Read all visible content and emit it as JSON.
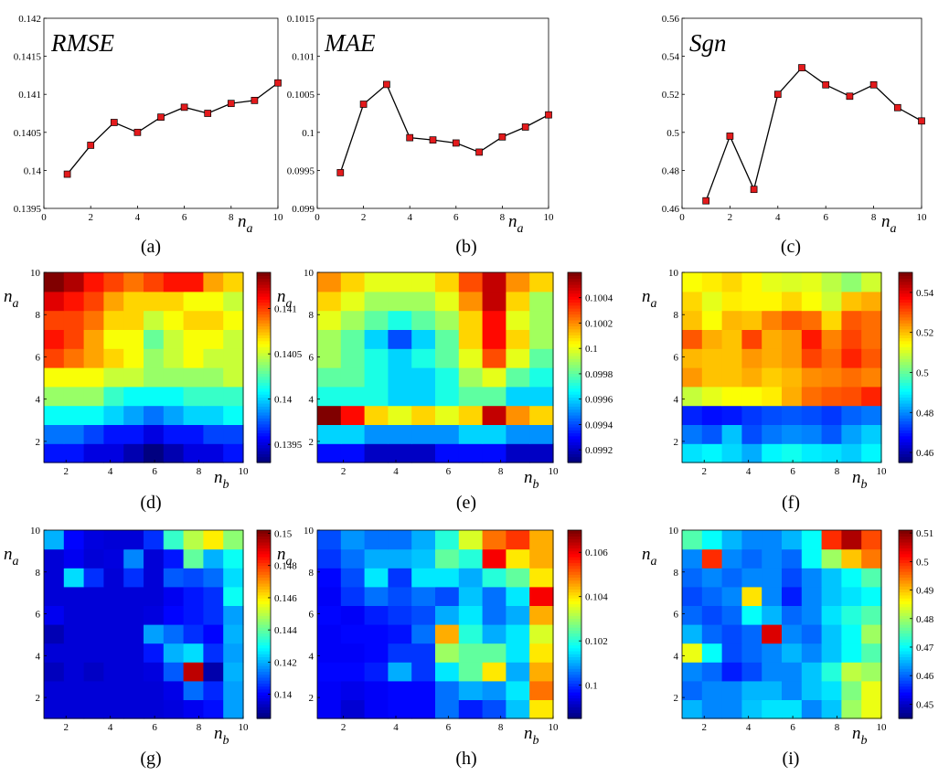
{
  "figure": {
    "panel_captions": [
      "(a)",
      "(b)",
      "(c)",
      "(d)",
      "(e)",
      "(f)",
      "(g)",
      "(h)",
      "(i)"
    ],
    "xlabel_main": "n",
    "xlabel_sub_a": "a",
    "xlabel_sub_b": "b",
    "ylabel_main": "n",
    "ylabel_sub": "a",
    "colors": {
      "line": "#000000",
      "marker_fill": "#e31a1c",
      "marker_edge": "#000000",
      "jet_low": "#00008f",
      "jet_high": "#800000"
    }
  },
  "chart_data": [
    {
      "panel": "a",
      "type": "line",
      "title": "RMSE",
      "x": [
        1,
        2,
        3,
        4,
        5,
        6,
        7,
        8,
        9,
        10
      ],
      "y": [
        0.13995,
        0.14033,
        0.14063,
        0.1405,
        0.1407,
        0.14083,
        0.14075,
        0.14088,
        0.14092,
        0.14115
      ],
      "xlim": [
        0,
        10
      ],
      "ylim": [
        0.1395,
        0.142
      ],
      "xticks": [
        "0",
        "2",
        "4",
        "6",
        "8",
        "10"
      ],
      "yticks": [
        "0.1395",
        "0.14",
        "0.1405",
        "0.141",
        "0.1415",
        "0.142"
      ]
    },
    {
      "panel": "b",
      "type": "line",
      "title": "MAE",
      "x": [
        1,
        2,
        3,
        4,
        5,
        6,
        7,
        8,
        9,
        10
      ],
      "y": [
        0.09947,
        0.10037,
        0.10063,
        0.09993,
        0.0999,
        0.09986,
        0.09974,
        0.09994,
        0.10007,
        0.10023
      ],
      "xlim": [
        0,
        10
      ],
      "ylim": [
        0.099,
        0.1015
      ],
      "xticks": [
        "0",
        "2",
        "4",
        "6",
        "8",
        "10"
      ],
      "yticks": [
        "0.099",
        "0.0995",
        "0.1",
        "0.1005",
        "0.101",
        "0.1015"
      ]
    },
    {
      "panel": "c",
      "type": "line",
      "title": "Sgn",
      "x": [
        1,
        2,
        3,
        4,
        5,
        6,
        7,
        8,
        9,
        10
      ],
      "y": [
        0.464,
        0.498,
        0.47,
        0.52,
        0.534,
        0.525,
        0.519,
        0.525,
        0.513,
        0.506
      ],
      "xlim": [
        0,
        10
      ],
      "ylim": [
        0.46,
        0.56
      ],
      "xticks": [
        "0",
        "2",
        "4",
        "6",
        "8",
        "10"
      ],
      "yticks": [
        "0.46",
        "0.48",
        "0.5",
        "0.52",
        "0.54",
        "0.56"
      ]
    },
    {
      "panel": "d",
      "type": "heatmap",
      "xticks": [
        "2",
        "4",
        "6",
        "8",
        "10"
      ],
      "yticks": [
        "2",
        "4",
        "6",
        "8",
        "10"
      ],
      "clim": [
        0.1393,
        0.1414
      ],
      "colorbar_ticks": [
        "0.1395",
        "0.14",
        "0.1405",
        "0.141"
      ],
      "colorbar_values": [
        0.1395,
        0.14,
        0.1405,
        0.141
      ],
      "z": [
        [
          0.1396,
          0.1396,
          0.1395,
          0.1395,
          0.1394,
          0.1393,
          0.1394,
          0.1395,
          0.1395,
          0.1396
        ],
        [
          0.1398,
          0.1398,
          0.1397,
          0.1396,
          0.1396,
          0.1395,
          0.1396,
          0.1396,
          0.1397,
          0.1397
        ],
        [
          0.1401,
          0.1401,
          0.1401,
          0.14,
          0.1399,
          0.1398,
          0.1399,
          0.14,
          0.14,
          0.1401
        ],
        [
          0.1404,
          0.1404,
          0.1404,
          0.1402,
          0.1401,
          0.1401,
          0.1401,
          0.1402,
          0.1402,
          0.1402
        ],
        [
          0.1406,
          0.1406,
          0.1406,
          0.1405,
          0.1405,
          0.1404,
          0.1404,
          0.1404,
          0.1404,
          0.1405
        ],
        [
          0.141,
          0.1409,
          0.1408,
          0.1407,
          0.1406,
          0.1404,
          0.1405,
          0.1406,
          0.1405,
          0.1405
        ],
        [
          0.1411,
          0.141,
          0.1408,
          0.1406,
          0.1406,
          0.1403,
          0.1405,
          0.1406,
          0.1406,
          0.1405
        ],
        [
          0.141,
          0.141,
          0.1409,
          0.1407,
          0.1407,
          0.1405,
          0.1406,
          0.1407,
          0.1407,
          0.1406
        ],
        [
          0.1412,
          0.1411,
          0.141,
          0.1408,
          0.1407,
          0.1407,
          0.1407,
          0.1406,
          0.1406,
          0.1405
        ],
        [
          0.1414,
          0.1413,
          0.1411,
          0.141,
          0.1409,
          0.141,
          0.1411,
          0.1411,
          0.1408,
          0.1407
        ]
      ]
    },
    {
      "panel": "e",
      "type": "heatmap",
      "xticks": [
        "2",
        "4",
        "6",
        "8",
        "10"
      ],
      "yticks": [
        "2",
        "4",
        "6",
        "8",
        "10"
      ],
      "clim": [
        0.0991,
        0.1006
      ],
      "colorbar_ticks": [
        "0.0992",
        "0.0994",
        "0.0996",
        "0.0998",
        "0.1",
        "0.1002",
        "0.1004"
      ],
      "colorbar_values": [
        0.0992,
        0.0994,
        0.0996,
        0.0998,
        0.1,
        0.1002,
        0.1004
      ],
      "z": [
        [
          0.0993,
          0.0993,
          0.0992,
          0.0992,
          0.0992,
          0.0993,
          0.0993,
          0.0993,
          0.0992,
          0.0992
        ],
        [
          0.0996,
          0.0996,
          0.0995,
          0.0995,
          0.0995,
          0.0995,
          0.0996,
          0.0996,
          0.0995,
          0.0995
        ],
        [
          0.1006,
          0.1004,
          0.1001,
          0.1,
          0.1001,
          0.1,
          0.1001,
          0.1005,
          0.1002,
          0.1001
        ],
        [
          0.0997,
          0.0997,
          0.0997,
          0.0996,
          0.0996,
          0.0997,
          0.0998,
          0.0998,
          0.0996,
          0.0996
        ],
        [
          0.0998,
          0.0998,
          0.0997,
          0.0996,
          0.0996,
          0.0997,
          0.0999,
          0.1,
          0.0998,
          0.0997
        ],
        [
          0.0999,
          0.0998,
          0.0997,
          0.0996,
          0.0997,
          0.0998,
          0.1,
          0.1003,
          0.1,
          0.0998
        ],
        [
          0.0999,
          0.0998,
          0.0996,
          0.0994,
          0.0996,
          0.0998,
          0.1001,
          0.1004,
          0.1001,
          0.0999
        ],
        [
          0.1,
          0.0999,
          0.0998,
          0.0997,
          0.0998,
          0.0999,
          0.1001,
          0.1004,
          0.1,
          0.0999
        ],
        [
          0.1001,
          0.1,
          0.0999,
          0.0999,
          0.0999,
          0.1,
          0.1002,
          0.1005,
          0.1001,
          0.0999
        ],
        [
          0.1002,
          0.1001,
          0.1,
          0.1,
          0.1,
          0.1001,
          0.1003,
          0.1005,
          0.1002,
          0.1001
        ]
      ]
    },
    {
      "panel": "f",
      "type": "heatmap",
      "xticks": [
        "2",
        "4",
        "6",
        "8",
        "10"
      ],
      "yticks": [
        "2",
        "4",
        "6",
        "8",
        "10"
      ],
      "clim": [
        0.455,
        0.55
      ],
      "colorbar_ticks": [
        "0.46",
        "0.48",
        "0.5",
        "0.52",
        "0.54"
      ],
      "colorbar_values": [
        0.46,
        0.48,
        0.5,
        0.52,
        0.54
      ],
      "z": [
        [
          0.488,
          0.49,
          0.487,
          0.483,
          0.49,
          0.492,
          0.489,
          0.488,
          0.486,
          0.49
        ],
        [
          0.478,
          0.475,
          0.485,
          0.474,
          0.478,
          0.48,
          0.479,
          0.475,
          0.482,
          0.486
        ],
        [
          0.47,
          0.468,
          0.469,
          0.472,
          0.474,
          0.475,
          0.474,
          0.472,
          0.476,
          0.478
        ],
        [
          0.509,
          0.512,
          0.514,
          0.514,
          0.516,
          0.522,
          0.528,
          0.53,
          0.531,
          0.535
        ],
        [
          0.524,
          0.52,
          0.52,
          0.522,
          0.519,
          0.521,
          0.525,
          0.526,
          0.528,
          0.526
        ],
        [
          0.521,
          0.52,
          0.52,
          0.524,
          0.522,
          0.524,
          0.532,
          0.528,
          0.535,
          0.53
        ],
        [
          0.53,
          0.522,
          0.52,
          0.532,
          0.522,
          0.524,
          0.536,
          0.526,
          0.532,
          0.528
        ],
        [
          0.52,
          0.514,
          0.521,
          0.52,
          0.526,
          0.53,
          0.528,
          0.518,
          0.53,
          0.528
        ],
        [
          0.518,
          0.512,
          0.516,
          0.515,
          0.515,
          0.518,
          0.514,
          0.51,
          0.52,
          0.522
        ],
        [
          0.514,
          0.516,
          0.518,
          0.515,
          0.512,
          0.511,
          0.512,
          0.508,
          0.504,
          0.51
        ]
      ]
    },
    {
      "panel": "g",
      "type": "heatmap",
      "xticks": [
        "2",
        "4",
        "6",
        "8",
        "10"
      ],
      "yticks": [
        "2",
        "4",
        "6",
        "8",
        "10"
      ],
      "clim": [
        0.1385,
        0.1502
      ],
      "colorbar_ticks": [
        "0.14",
        "0.142",
        "0.144",
        "0.146",
        "0.148",
        "0.15"
      ],
      "colorbar_values": [
        0.14,
        0.142,
        0.144,
        0.146,
        0.148,
        0.15
      ],
      "z": [
        [
          0.1395,
          0.1395,
          0.1395,
          0.1395,
          0.1395,
          0.1395,
          0.1396,
          0.1398,
          0.1401,
          0.1418
        ],
        [
          0.1395,
          0.1395,
          0.1395,
          0.1395,
          0.1395,
          0.1395,
          0.1397,
          0.1412,
          0.1404,
          0.1418
        ],
        [
          0.1392,
          0.1395,
          0.1393,
          0.1395,
          0.1395,
          0.1396,
          0.141,
          0.1495,
          0.139,
          0.142
        ],
        [
          0.1395,
          0.1395,
          0.1395,
          0.1395,
          0.1395,
          0.1402,
          0.142,
          0.1425,
          0.1405,
          0.1418
        ],
        [
          0.1391,
          0.1395,
          0.1395,
          0.1395,
          0.1395,
          0.1418,
          0.1412,
          0.1405,
          0.14,
          0.142
        ],
        [
          0.1398,
          0.1395,
          0.1395,
          0.1395,
          0.1395,
          0.1396,
          0.14,
          0.1402,
          0.1405,
          0.1418
        ],
        [
          0.1395,
          0.1395,
          0.1395,
          0.1395,
          0.1395,
          0.1395,
          0.1398,
          0.1402,
          0.1405,
          0.143
        ],
        [
          0.1395,
          0.1425,
          0.1405,
          0.1395,
          0.1405,
          0.1395,
          0.141,
          0.1408,
          0.1412,
          0.1425
        ],
        [
          0.1395,
          0.1398,
          0.1395,
          0.1396,
          0.1415,
          0.1395,
          0.1402,
          0.144,
          0.142,
          0.143
        ],
        [
          0.142,
          0.14,
          0.1396,
          0.1395,
          0.1395,
          0.1405,
          0.1435,
          0.145,
          0.146,
          0.1445
        ]
      ]
    },
    {
      "panel": "h",
      "type": "heatmap",
      "xticks": [
        "2",
        "4",
        "6",
        "8",
        "10"
      ],
      "yticks": [
        "2",
        "4",
        "6",
        "8",
        "10"
      ],
      "clim": [
        0.0985,
        0.107
      ],
      "colorbar_ticks": [
        "0.1",
        "0.102",
        "0.104",
        "0.106"
      ],
      "colorbar_values": [
        0.1,
        0.102,
        0.104,
        0.106
      ],
      "z": [
        [
          0.0995,
          0.0992,
          0.0995,
          0.0996,
          0.0996,
          0.1005,
          0.0998,
          0.1002,
          0.1012,
          0.104
        ],
        [
          0.0995,
          0.0994,
          0.0995,
          0.0996,
          0.0996,
          0.1005,
          0.101,
          0.1008,
          0.1015,
          0.105
        ],
        [
          0.0996,
          0.0996,
          0.0998,
          0.101,
          0.1,
          0.1015,
          0.1025,
          0.104,
          0.101,
          0.1045
        ],
        [
          0.0995,
          0.0995,
          0.0996,
          0.1,
          0.1,
          0.103,
          0.1025,
          0.1025,
          0.1015,
          0.104
        ],
        [
          0.0995,
          0.0996,
          0.0996,
          0.0997,
          0.1005,
          0.1045,
          0.102,
          0.101,
          0.1015,
          0.1035
        ],
        [
          0.0996,
          0.0995,
          0.0998,
          0.1,
          0.1002,
          0.101,
          0.1015,
          0.1005,
          0.101,
          0.1045
        ],
        [
          0.0995,
          0.1,
          0.1005,
          0.1002,
          0.1005,
          0.1002,
          0.1012,
          0.1005,
          0.1015,
          0.106
        ],
        [
          0.0996,
          0.1002,
          0.1015,
          0.1,
          0.1015,
          0.1015,
          0.101,
          0.102,
          0.1025,
          0.104
        ],
        [
          0.1,
          0.1005,
          0.101,
          0.101,
          0.1012,
          0.1025,
          0.102,
          0.106,
          0.104,
          0.1045
        ],
        [
          0.1002,
          0.1008,
          0.1005,
          0.1005,
          0.101,
          0.102,
          0.1035,
          0.105,
          0.1055,
          0.1045
        ]
      ]
    },
    {
      "panel": "i",
      "type": "heatmap",
      "xticks": [
        "2",
        "4",
        "6",
        "8",
        "10"
      ],
      "yticks": [
        "2",
        "4",
        "6",
        "8",
        "10"
      ],
      "clim": [
        0.445,
        0.511
      ],
      "colorbar_ticks": [
        "0.45",
        "0.46",
        "0.47",
        "0.48",
        "0.49",
        "0.5",
        "0.51"
      ],
      "colorbar_values": [
        0.45,
        0.46,
        0.47,
        0.48,
        0.49,
        0.5,
        0.51
      ],
      "z": [
        [
          0.465,
          0.462,
          0.462,
          0.466,
          0.468,
          0.468,
          0.462,
          0.466,
          0.48,
          0.485
        ],
        [
          0.46,
          0.462,
          0.462,
          0.465,
          0.465,
          0.462,
          0.466,
          0.468,
          0.478,
          0.485
        ],
        [
          0.462,
          0.46,
          0.455,
          0.458,
          0.462,
          0.462,
          0.466,
          0.472,
          0.482,
          0.48
        ],
        [
          0.485,
          0.47,
          0.458,
          0.46,
          0.462,
          0.465,
          0.462,
          0.466,
          0.47,
          0.475
        ],
        [
          0.465,
          0.46,
          0.458,
          0.46,
          0.505,
          0.462,
          0.46,
          0.466,
          0.47,
          0.48
        ],
        [
          0.46,
          0.458,
          0.46,
          0.47,
          0.465,
          0.46,
          0.462,
          0.468,
          0.472,
          0.475
        ],
        [
          0.458,
          0.46,
          0.462,
          0.488,
          0.462,
          0.455,
          0.462,
          0.466,
          0.468,
          0.47
        ],
        [
          0.46,
          0.462,
          0.46,
          0.462,
          0.462,
          0.458,
          0.462,
          0.466,
          0.47,
          0.475
        ],
        [
          0.462,
          0.5,
          0.462,
          0.46,
          0.462,
          0.46,
          0.47,
          0.48,
          0.49,
          0.495
        ],
        [
          0.475,
          0.47,
          0.465,
          0.462,
          0.462,
          0.465,
          0.47,
          0.5,
          0.508,
          0.498
        ]
      ]
    }
  ]
}
